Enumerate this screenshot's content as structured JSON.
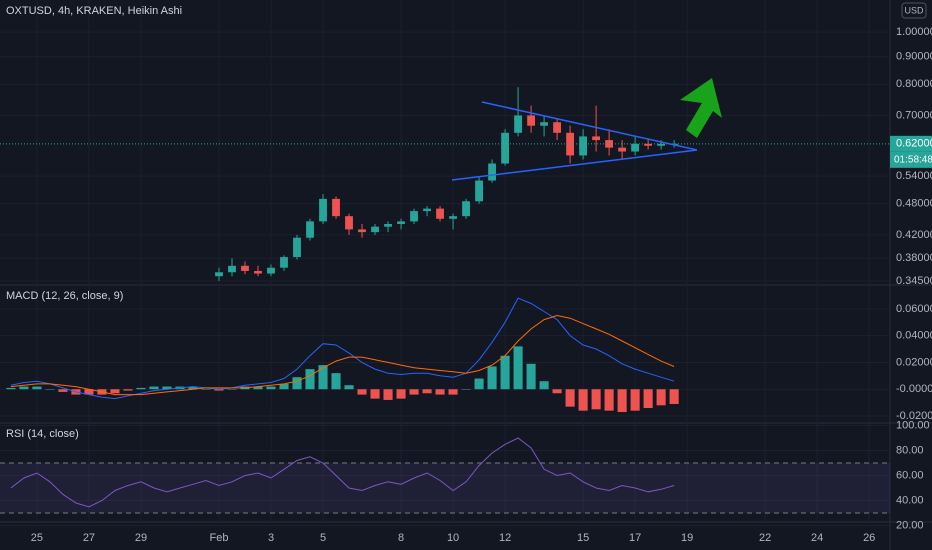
{
  "chart_data": [
    {
      "type": "candlestick",
      "title": "OXTUSD, 4h, KRAKEN, Heikin Ashi",
      "log_scale": true,
      "currency": "USD",
      "countdown": "01:58:48",
      "last_price": {
        "value": 0.62,
        "label": "0.62000"
      },
      "up_color": "#26a69a",
      "down_color": "#ef5350",
      "xlim": [
        23.58,
        57.8
      ],
      "xticks": [
        25,
        27,
        29,
        {
          "value": 32,
          "label": "Feb"
        },
        {
          "value": 34,
          "label": "3"
        },
        {
          "value": 36,
          "label": "5"
        },
        {
          "value": 39,
          "label": "8"
        },
        {
          "value": 41,
          "label": "10"
        },
        {
          "value": 43,
          "label": "12"
        },
        {
          "value": 46,
          "label": "15"
        },
        {
          "value": 48,
          "label": "17"
        },
        {
          "value": 50,
          "label": "19"
        },
        {
          "value": 53,
          "label": "22"
        },
        {
          "value": 55,
          "label": "24"
        },
        {
          "value": 57,
          "label": "26"
        }
      ],
      "ylim": [
        0.339,
        1.147
      ],
      "yticks": [
        {
          "value": 1.0,
          "label": "1.00000"
        },
        {
          "value": 0.9,
          "label": "0.90000"
        },
        {
          "value": 0.8,
          "label": "0.80000"
        },
        {
          "value": 0.7,
          "label": "0.70000"
        },
        {
          "value": 0.54,
          "label": "0.54000"
        },
        {
          "value": 0.48,
          "label": "0.48000"
        },
        {
          "value": 0.42,
          "label": "0.42000"
        },
        {
          "value": 0.38,
          "label": "0.38000"
        },
        {
          "value": 0.345,
          "label": "0.34500"
        }
      ],
      "x": [
        32,
        32.5,
        33,
        33.5,
        34,
        34.5,
        35,
        35.5,
        36,
        36.5,
        37,
        37.5,
        38,
        38.5,
        39,
        39.5,
        40,
        40.5,
        41,
        41.5,
        42,
        42.5,
        43,
        43.5,
        44,
        44.5,
        45,
        45.5,
        46,
        46.5,
        47,
        47.5,
        48,
        48.5,
        49,
        49.5
      ],
      "open": [
        0.352,
        0.358,
        0.368,
        0.36,
        0.356,
        0.365,
        0.382,
        0.415,
        0.445,
        0.49,
        0.455,
        0.43,
        0.425,
        0.435,
        0.44,
        0.445,
        0.465,
        0.47,
        0.45,
        0.455,
        0.485,
        0.53,
        0.57,
        0.65,
        0.7,
        0.67,
        0.68,
        0.65,
        0.59,
        0.64,
        0.63,
        0.61,
        0.6,
        0.62,
        0.615,
        0.62
      ],
      "high": [
        0.365,
        0.38,
        0.375,
        0.368,
        0.37,
        0.385,
        0.42,
        0.45,
        0.5,
        0.495,
        0.46,
        0.44,
        0.44,
        0.445,
        0.45,
        0.47,
        0.475,
        0.475,
        0.46,
        0.49,
        0.54,
        0.58,
        0.66,
        0.79,
        0.73,
        0.7,
        0.69,
        0.67,
        0.66,
        0.73,
        0.66,
        0.63,
        0.64,
        0.635,
        0.63,
        0.63
      ],
      "low": [
        0.345,
        0.352,
        0.355,
        0.352,
        0.352,
        0.36,
        0.378,
        0.41,
        0.44,
        0.45,
        0.42,
        0.415,
        0.42,
        0.425,
        0.43,
        0.44,
        0.455,
        0.445,
        0.43,
        0.45,
        0.48,
        0.525,
        0.565,
        0.64,
        0.65,
        0.64,
        0.63,
        0.57,
        0.58,
        0.6,
        0.59,
        0.58,
        0.59,
        0.605,
        0.605,
        0.61
      ],
      "close": [
        0.358,
        0.368,
        0.36,
        0.356,
        0.365,
        0.382,
        0.415,
        0.445,
        0.49,
        0.455,
        0.43,
        0.425,
        0.435,
        0.44,
        0.445,
        0.465,
        0.47,
        0.45,
        0.455,
        0.485,
        0.53,
        0.57,
        0.65,
        0.7,
        0.67,
        0.68,
        0.65,
        0.59,
        0.64,
        0.63,
        0.61,
        0.6,
        0.62,
        0.615,
        0.62,
        0.62
      ]
    },
    {
      "type": "macd",
      "title": "MACD (12, 26, close, 9)",
      "ylim": [
        -0.0252,
        0.0778
      ],
      "yticks": [
        {
          "value": 0.06,
          "label": "0.06000"
        },
        {
          "value": 0.04,
          "label": "0.04000"
        },
        {
          "value": 0.02,
          "label": "0.02000"
        },
        {
          "value": 0,
          "label": "-0.00000"
        },
        {
          "value": -0.02,
          "label": "-0.02000"
        }
      ],
      "x": [
        24,
        24.5,
        25,
        25.5,
        26,
        26.5,
        27,
        27.5,
        28,
        28.5,
        29,
        29.5,
        30,
        30.5,
        31,
        31.5,
        32,
        32.5,
        33,
        33.5,
        34,
        34.5,
        35,
        35.5,
        36,
        36.5,
        37,
        37.5,
        38,
        38.5,
        39,
        39.5,
        40,
        40.5,
        41,
        41.5,
        42,
        42.5,
        43,
        43.5,
        44,
        44.5,
        45,
        45.5,
        46,
        46.5,
        47,
        47.5,
        48,
        48.5,
        49,
        49.5
      ],
      "series": [
        {
          "color": "#2962ff",
          "values": [
            0.003,
            0.005,
            0.006,
            0.004,
            0.001,
            -0.002,
            -0.004,
            -0.006,
            -0.007,
            -0.005,
            -0.003,
            -0.001,
            0,
            0.001,
            0.002,
            0.001,
            0,
            0.001,
            0.003,
            0.004,
            0.005,
            0.008,
            0.015,
            0.025,
            0.034,
            0.033,
            0.027,
            0.02,
            0.015,
            0.012,
            0.011,
            0.012,
            0.012,
            0.01,
            0.009,
            0.012,
            0.022,
            0.035,
            0.05,
            0.068,
            0.064,
            0.058,
            0.052,
            0.04,
            0.033,
            0.03,
            0.025,
            0.019,
            0.015,
            0.012,
            0.009,
            0.006
          ]
        },
        {
          "color": "#ff6d00",
          "values": [
            0.002,
            0.003,
            0.004,
            0.004,
            0.003,
            0.002,
            0,
            -0.002,
            -0.004,
            -0.004,
            -0.004,
            -0.003,
            -0.002,
            -0.001,
            0,
            0.001,
            0.001,
            0.001,
            0.001,
            0.002,
            0.003,
            0.004,
            0.006,
            0.01,
            0.016,
            0.021,
            0.024,
            0.024,
            0.022,
            0.02,
            0.018,
            0.016,
            0.015,
            0.014,
            0.013,
            0.012,
            0.014,
            0.018,
            0.025,
            0.036,
            0.045,
            0.052,
            0.055,
            0.053,
            0.049,
            0.045,
            0.041,
            0.036,
            0.031,
            0.026,
            0.021,
            0.017
          ]
        }
      ],
      "histogram": {
        "up_color": "#26a69a",
        "down_color": "#ef5350",
        "values": [
          0.001,
          0.002,
          0.002,
          0,
          -0.002,
          -0.004,
          -0.004,
          -0.004,
          -0.003,
          -0.001,
          0.001,
          0.002,
          0.002,
          0.002,
          0.002,
          0,
          -0.001,
          0,
          0.002,
          0.002,
          0.002,
          0.004,
          0.009,
          0.015,
          0.018,
          0.012,
          0.003,
          -0.004,
          -0.007,
          -0.008,
          -0.007,
          -0.004,
          -0.003,
          -0.004,
          -0.004,
          0,
          0.008,
          0.017,
          0.025,
          0.032,
          0.019,
          0.006,
          -0.003,
          -0.013,
          -0.016,
          -0.015,
          -0.016,
          -0.017,
          -0.016,
          -0.014,
          -0.012,
          -0.011
        ]
      }
    },
    {
      "type": "line",
      "title": "RSI (14, close)",
      "color": "#7e57c2",
      "ylim": [
        24.4,
        102
      ],
      "yticks": [
        {
          "value": 100,
          "label": "100.00"
        },
        {
          "value": 80,
          "label": "80.00"
        },
        {
          "value": 60,
          "label": "60.00"
        },
        {
          "value": 40,
          "label": "40.00"
        },
        {
          "value": 20,
          "label": "20.00"
        }
      ],
      "bands": [
        30,
        70
      ],
      "x": [
        24,
        24.5,
        25,
        25.5,
        26,
        26.5,
        27,
        27.5,
        28,
        28.5,
        29,
        29.5,
        30,
        30.5,
        31,
        31.5,
        32,
        32.5,
        33,
        33.5,
        34,
        34.5,
        35,
        35.5,
        36,
        36.5,
        37,
        37.5,
        38,
        38.5,
        39,
        39.5,
        40,
        40.5,
        41,
        41.5,
        42,
        42.5,
        43,
        43.5,
        44,
        44.5,
        45,
        45.5,
        46,
        46.5,
        47,
        47.5,
        48,
        48.5,
        49,
        49.5
      ],
      "values": [
        50,
        58,
        62,
        55,
        45,
        38,
        35,
        40,
        48,
        52,
        55,
        50,
        47,
        50,
        53,
        56,
        52,
        55,
        60,
        62,
        58,
        65,
        72,
        75,
        70,
        60,
        50,
        48,
        52,
        55,
        53,
        58,
        62,
        56,
        48,
        55,
        68,
        78,
        85,
        90,
        82,
        65,
        60,
        62,
        55,
        50,
        48,
        52,
        50,
        47,
        49,
        52
      ]
    }
  ]
}
